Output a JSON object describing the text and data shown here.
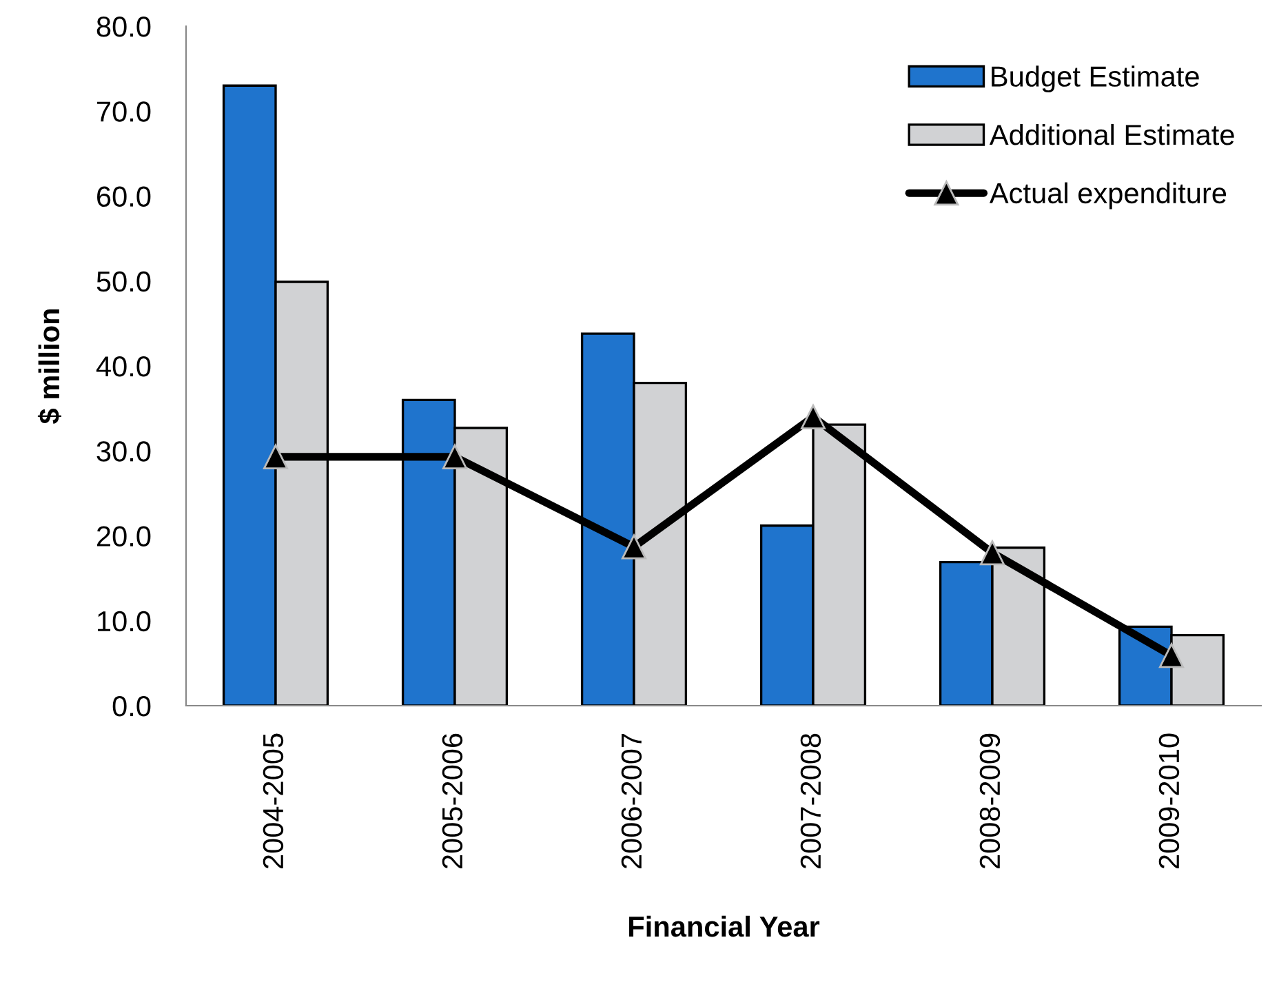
{
  "chart_data": {
    "type": "bar",
    "xlabel": "Financial Year",
    "ylabel": "$ million",
    "categories": [
      "2004-2005",
      "2005-2006",
      "2006-2007",
      "2007-2008",
      "2008-2009",
      "2009-2010"
    ],
    "series": [
      {
        "name": "Budget Estimate",
        "color": "#1f74cd",
        "values": [
          73.0,
          36.0,
          43.8,
          21.2,
          16.9,
          9.3
        ]
      },
      {
        "name": "Additional Estimate",
        "color": "#d1d2d4",
        "values": [
          49.9,
          32.7,
          38.0,
          33.1,
          18.6,
          8.3
        ]
      },
      {
        "name": "Actual expenditure",
        "type": "line",
        "color": "#000000",
        "marker": "triangle",
        "line_style": "solid",
        "values": [
          29.3,
          29.3,
          18.7,
          34.0,
          18.0,
          5.9
        ]
      }
    ],
    "ylim": [
      0,
      80
    ],
    "yticks": [
      {
        "value": 0,
        "label": "0.0"
      },
      {
        "value": 10,
        "label": "10.0"
      },
      {
        "value": 20,
        "label": "20.0"
      },
      {
        "value": 30,
        "label": "30.0"
      },
      {
        "value": 40,
        "label": "40.0"
      },
      {
        "value": 50,
        "label": "50.0"
      },
      {
        "value": 60,
        "label": "60.0"
      },
      {
        "value": 70,
        "label": "70.0"
      },
      {
        "value": 80,
        "label": "80.0"
      }
    ],
    "grid": false,
    "legend": "top right"
  }
}
